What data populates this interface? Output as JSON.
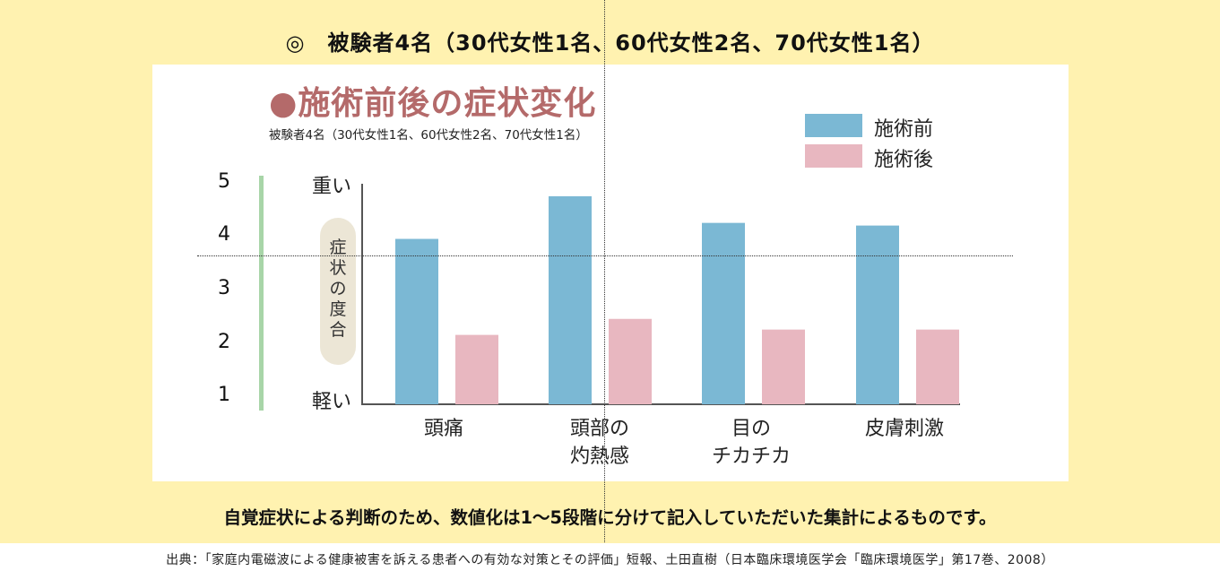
{
  "header": {
    "title": "◎　被験者4名（30代女性1名、60代女性2名、70代女性1名）"
  },
  "chart_data": {
    "type": "bar",
    "title": "●施術前後の症状変化",
    "subtitle": "被験者4名（30代女性1名、60代女性2名、70代女性1名）",
    "categories": [
      "頭痛",
      "頭部の\n灼熱感",
      "目の\nチカチカ",
      "皮膚刺激"
    ],
    "series": [
      {
        "name": "施術前",
        "color": "#7bb8d4",
        "values": [
          4.0,
          4.8,
          4.3,
          4.25
        ]
      },
      {
        "name": "施術後",
        "color": "#e8b7c0",
        "values": [
          2.2,
          2.5,
          2.3,
          2.3
        ]
      }
    ],
    "scale_ticks": [
      "5",
      "4",
      "3",
      "2",
      "1"
    ],
    "ylim": [
      1,
      5
    ],
    "y_top_label": "重い",
    "y_bottom_label": "軽い",
    "ylabel": "症状の度合",
    "legend_position": "top-right"
  },
  "note": "自覚症状による判断のため、数値化は1〜5段階に分けて記入していただいた集計によるものです。",
  "source": "出典：「家庭内電磁波による健康被害を訴える患者への有効な対策とその評価」短報、土田直樹（日本臨床環境医学会「臨床環境医学」第17巻、2008）"
}
